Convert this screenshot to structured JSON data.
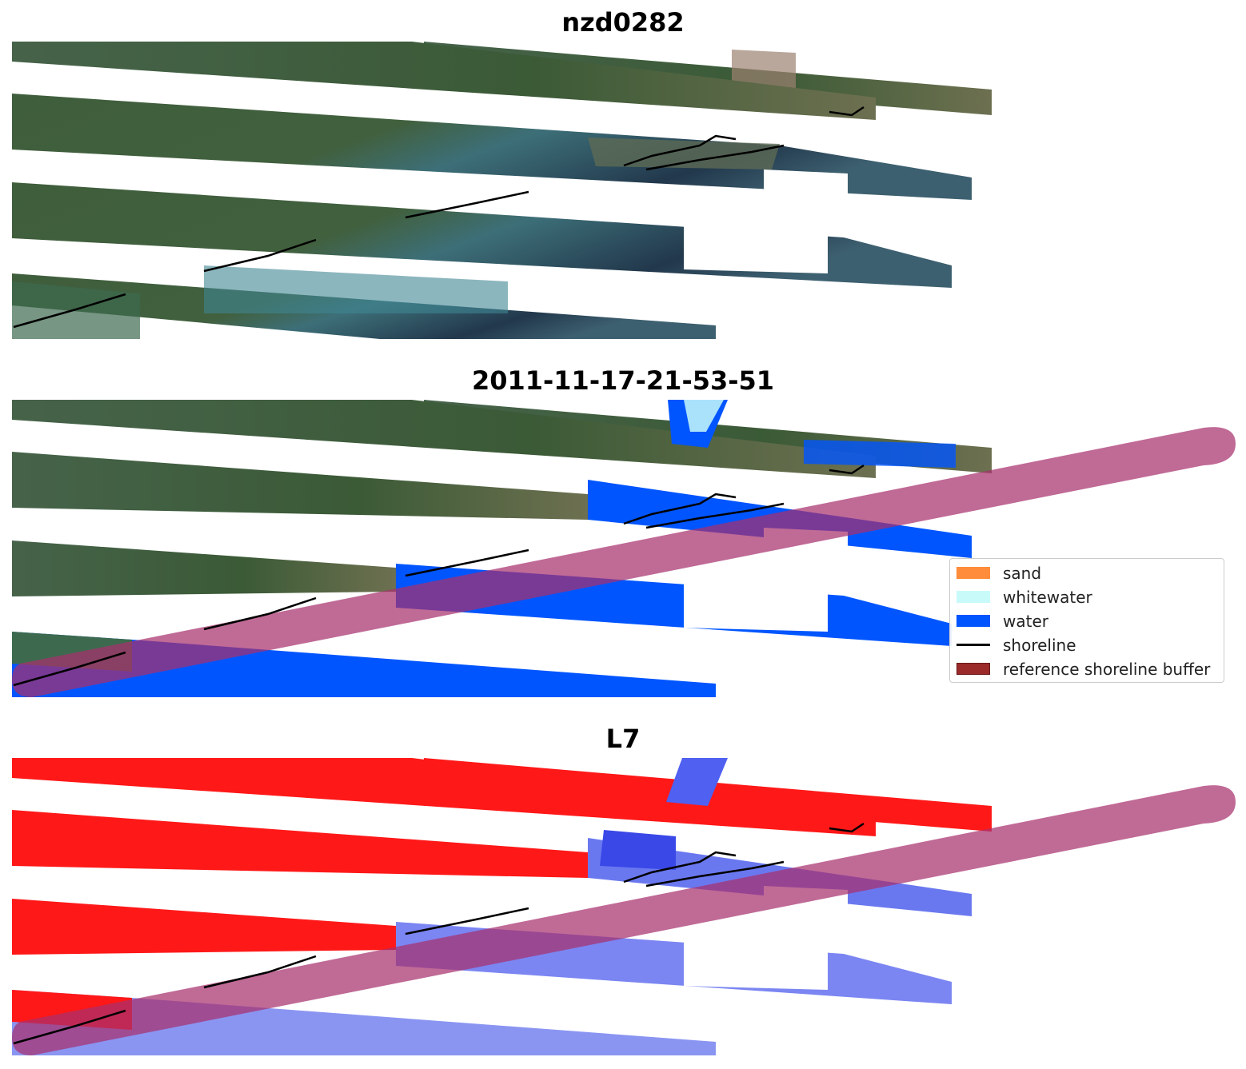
{
  "panels": [
    {
      "title": "nzd0282",
      "mode": "rgb"
    },
    {
      "title": "2011-11-17-21-53-51",
      "mode": "classified"
    },
    {
      "title": "L7",
      "mode": "index"
    }
  ],
  "legend": {
    "items": [
      {
        "label": "sand",
        "kind": "patch",
        "color": "#ff8c3a"
      },
      {
        "label": "whitewater",
        "kind": "patch",
        "color": "#c8fafa"
      },
      {
        "label": "water",
        "kind": "patch",
        "color": "#0055ff"
      },
      {
        "label": "shoreline",
        "kind": "line",
        "color": "#000000"
      },
      {
        "label": "reference shoreline buffer",
        "kind": "patch",
        "color": "#9b2a2a"
      }
    ]
  },
  "colors": {
    "land_green": "#3f5e3c",
    "water_teal": "#3d6f78",
    "water_dark": "#22384c",
    "class_water": "#0055ff",
    "index_red": "#ff1818",
    "index_blue": "#5060f0",
    "buffer": "#a8306e",
    "shoreline": "#000000"
  }
}
